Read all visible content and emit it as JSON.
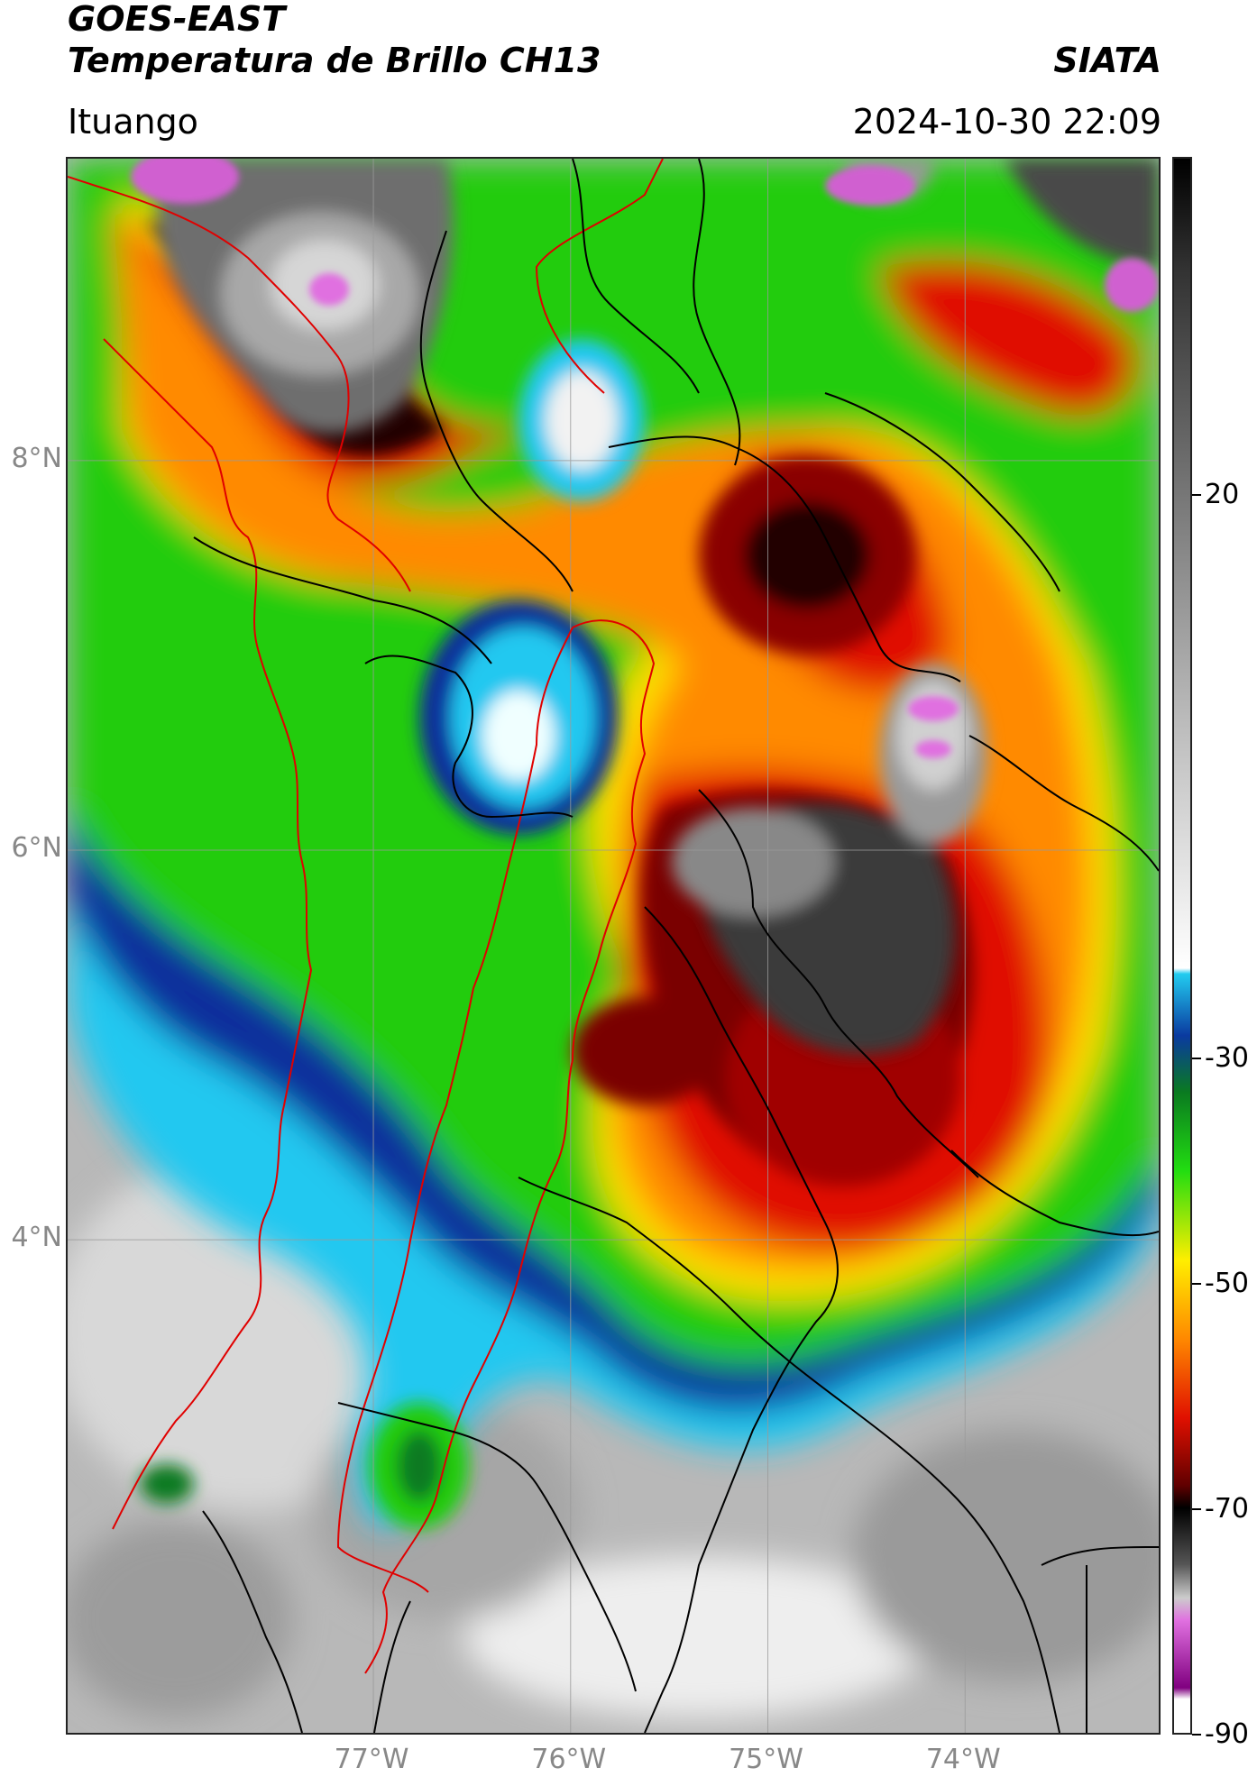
{
  "header": {
    "title_line1": "GOES-EAST",
    "title_line2": "Temperatura de Brillo CH13",
    "organization": "SIATA",
    "region": "Ituango",
    "timestamp": "2024-10-30 22:09"
  },
  "map": {
    "lon_range": [
      -78.55,
      -73.0
    ],
    "lat_range": [
      1.45,
      9.55
    ],
    "lat_ticks": [
      {
        "value": 8,
        "label": "8°N"
      },
      {
        "value": 6,
        "label": "6°N"
      },
      {
        "value": 4,
        "label": "4°N"
      }
    ],
    "lon_ticks": [
      {
        "value": -77,
        "label": "77°W"
      },
      {
        "value": -76,
        "label": "76°W"
      },
      {
        "value": -75,
        "label": "75°W"
      },
      {
        "value": -74,
        "label": "74°W"
      }
    ],
    "grid": true,
    "colors": {
      "cold_top": "#ffffff",
      "very_cold": "#cc66cc",
      "gray_core": "#444444",
      "red": "#dd1100",
      "orange": "#ff8800",
      "yellow": "#ffdd00",
      "green": "#22cc00",
      "blue": "#0033aa",
      "cyan": "#00ccff",
      "warm_surface": "#b0b0b0",
      "boundary_black": "#000000",
      "boundary_red": "#e00000"
    }
  },
  "colorbar": {
    "range": [
      -90,
      50
    ],
    "ticks": [
      {
        "value": 20,
        "label": "20"
      },
      {
        "value": -30,
        "label": "-30"
      },
      {
        "value": -50,
        "label": "-50"
      },
      {
        "value": -70,
        "label": "-70"
      },
      {
        "value": -90,
        "label": "-90"
      }
    ]
  }
}
